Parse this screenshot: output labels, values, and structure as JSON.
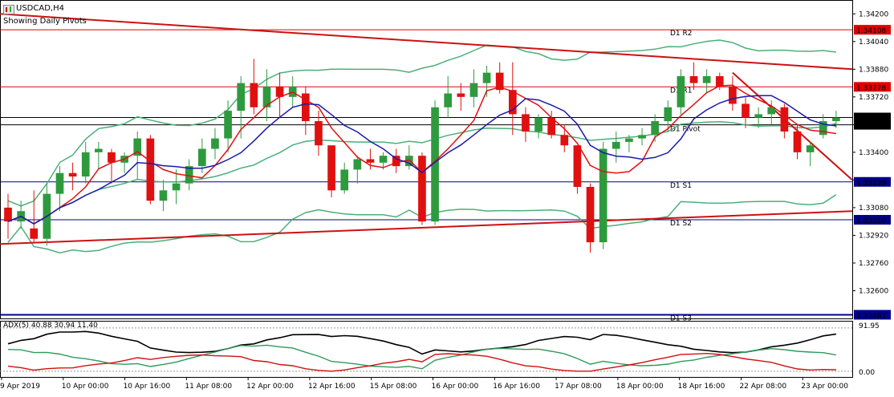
{
  "header": {
    "symbol": "USDCAD,H4",
    "subtitle": "Showing Daily Pivots",
    "indicator": "ADX(5) 40.88 30.94 11.40"
  },
  "chart_data": {
    "type": "candlestick",
    "symbol": "USDCAD",
    "timeframe": "H4",
    "ylim": [
      1.3244,
      1.3428
    ],
    "yticks": [
      1.342,
      1.3404,
      1.3388,
      1.3372,
      1.3356,
      1.334,
      1.3324,
      1.3308,
      1.3292,
      1.3276,
      1.326
    ],
    "ytick_labels": [
      "1.34200",
      "1.34040",
      "1.33880",
      "1.33720",
      "1.33560",
      "1.33400",
      "1.33240",
      "1.33080",
      "1.32920",
      "1.32760",
      "1.32600"
    ],
    "x_labels": [
      "9 Apr 2019",
      "10 Apr 00:00",
      "10 Apr 16:00",
      "11 Apr 08:00",
      "12 Apr 00:00",
      "12 Apr 16:00",
      "15 Apr 08:00",
      "16 Apr 00:00",
      "16 Apr 16:00",
      "17 Apr 08:00",
      "18 Apr 00:00",
      "18 Apr 16:00",
      "22 Apr 08:00",
      "23 Apr 00:00"
    ],
    "pivot_levels": [
      {
        "name": "D1 R2",
        "value": 1.34108,
        "tag": "1.34108",
        "color": "#e00000"
      },
      {
        "name": "D1 R1",
        "value": 1.33778,
        "tag": "1.33778",
        "color": "#e00000"
      },
      {
        "name": "D1 Pivot",
        "value": 1.33559,
        "tag": "1.33559",
        "color": "#000000"
      },
      {
        "name": "D1 S1",
        "value": 1.33229,
        "tag": "1.33229",
        "color": "#00008b"
      },
      {
        "name": "D1 S2",
        "value": 1.3301,
        "tag": "1.33010",
        "color": "#00008b"
      },
      {
        "name": "D1 S3",
        "value": 1.32461,
        "tag": "1.32461",
        "color": "#00008b"
      }
    ],
    "current_price": {
      "value": 1.33601,
      "tag": "1.33601"
    },
    "candles": [
      [
        1.3308,
        1.3316,
        1.329,
        1.33
      ],
      [
        1.33,
        1.3312,
        1.3296,
        1.3306
      ],
      [
        1.3296,
        1.3318,
        1.3288,
        1.329
      ],
      [
        1.329,
        1.3322,
        1.3286,
        1.3316
      ],
      [
        1.3316,
        1.3332,
        1.3306,
        1.3328
      ],
      [
        1.3328,
        1.3334,
        1.3318,
        1.3326
      ],
      [
        1.3326,
        1.3346,
        1.3322,
        1.334
      ],
      [
        1.334,
        1.3346,
        1.333,
        1.3342
      ],
      [
        1.334,
        1.3342,
        1.3322,
        1.3334
      ],
      [
        1.3334,
        1.334,
        1.3328,
        1.3338
      ],
      [
        1.3338,
        1.3352,
        1.3324,
        1.3348
      ],
      [
        1.3348,
        1.335,
        1.331,
        1.3312
      ],
      [
        1.3312,
        1.3324,
        1.3306,
        1.3318
      ],
      [
        1.3318,
        1.333,
        1.331,
        1.3322
      ],
      [
        1.3322,
        1.3336,
        1.3318,
        1.3332
      ],
      [
        1.3332,
        1.3348,
        1.3328,
        1.3342
      ],
      [
        1.3342,
        1.3354,
        1.3336,
        1.3348
      ],
      [
        1.3348,
        1.337,
        1.334,
        1.3364
      ],
      [
        1.3364,
        1.3384,
        1.3348,
        1.338
      ],
      [
        1.338,
        1.3394,
        1.3362,
        1.3366
      ],
      [
        1.3366,
        1.3388,
        1.3358,
        1.3378
      ],
      [
        1.3378,
        1.3386,
        1.336,
        1.3372
      ],
      [
        1.3372,
        1.3384,
        1.3366,
        1.3378
      ],
      [
        1.3374,
        1.3378,
        1.335,
        1.3358
      ],
      [
        1.3358,
        1.3364,
        1.3338,
        1.3344
      ],
      [
        1.3344,
        1.3344,
        1.3314,
        1.3318
      ],
      [
        1.3318,
        1.3334,
        1.3316,
        1.333
      ],
      [
        1.333,
        1.3338,
        1.3322,
        1.3336
      ],
      [
        1.3336,
        1.3342,
        1.333,
        1.3334
      ],
      [
        1.3334,
        1.334,
        1.333,
        1.3338
      ],
      [
        1.3338,
        1.3342,
        1.3328,
        1.3332
      ],
      [
        1.3332,
        1.3344,
        1.333,
        1.3338
      ],
      [
        1.3338,
        1.334,
        1.3298,
        1.33
      ],
      [
        1.33,
        1.337,
        1.3298,
        1.3366
      ],
      [
        1.3366,
        1.3384,
        1.336,
        1.3374
      ],
      [
        1.3374,
        1.338,
        1.3364,
        1.3372
      ],
      [
        1.3372,
        1.3388,
        1.3366,
        1.338
      ],
      [
        1.338,
        1.339,
        1.3372,
        1.3386
      ],
      [
        1.3386,
        1.3392,
        1.3374,
        1.3376
      ],
      [
        1.3376,
        1.3392,
        1.335,
        1.3362
      ],
      [
        1.3362,
        1.3366,
        1.3346,
        1.3352
      ],
      [
        1.3352,
        1.3362,
        1.3348,
        1.336
      ],
      [
        1.336,
        1.3364,
        1.3348,
        1.335
      ],
      [
        1.335,
        1.3356,
        1.334,
        1.3344
      ],
      [
        1.3344,
        1.3344,
        1.3316,
        1.332
      ],
      [
        1.332,
        1.3322,
        1.3282,
        1.3288
      ],
      [
        1.3288,
        1.3346,
        1.3284,
        1.3342
      ],
      [
        1.3342,
        1.3352,
        1.3334,
        1.3346
      ],
      [
        1.3346,
        1.335,
        1.334,
        1.3348
      ],
      [
        1.3348,
        1.3354,
        1.3344,
        1.335
      ],
      [
        1.335,
        1.3362,
        1.3346,
        1.3358
      ],
      [
        1.3358,
        1.337,
        1.3352,
        1.3366
      ],
      [
        1.3366,
        1.3388,
        1.3362,
        1.3384
      ],
      [
        1.3384,
        1.3392,
        1.3376,
        1.338
      ],
      [
        1.338,
        1.3388,
        1.3374,
        1.3384
      ],
      [
        1.3384,
        1.3386,
        1.3376,
        1.3378
      ],
      [
        1.3378,
        1.3384,
        1.3364,
        1.3368
      ],
      [
        1.3368,
        1.3372,
        1.3354,
        1.336
      ],
      [
        1.336,
        1.3366,
        1.3354,
        1.3362
      ],
      [
        1.3362,
        1.337,
        1.3356,
        1.3366
      ],
      [
        1.3366,
        1.3368,
        1.3348,
        1.3352
      ],
      [
        1.3352,
        1.3356,
        1.3336,
        1.334
      ],
      [
        1.334,
        1.3346,
        1.3332,
        1.3344
      ],
      [
        1.335,
        1.3362,
        1.3348,
        1.3358
      ],
      [
        1.3358,
        1.3364,
        1.3354,
        1.336
      ]
    ],
    "adx": {
      "label": "ADX(5)",
      "values": [
        40.88,
        30.94,
        11.4
      ],
      "ymax_label": "91.95",
      "ymin_label": "0.00"
    }
  }
}
